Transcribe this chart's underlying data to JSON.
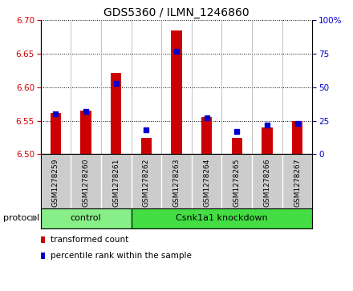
{
  "title": "GDS5360 / ILMN_1246860",
  "samples": [
    "GSM1278259",
    "GSM1278260",
    "GSM1278261",
    "GSM1278262",
    "GSM1278263",
    "GSM1278264",
    "GSM1278265",
    "GSM1278266",
    "GSM1278267"
  ],
  "transformed_count": [
    6.562,
    6.565,
    6.622,
    6.524,
    6.685,
    6.555,
    6.524,
    6.54,
    6.55
  ],
  "percentile_rank": [
    30,
    32,
    53,
    18,
    77,
    27,
    17,
    22,
    23
  ],
  "ylim_left": [
    6.5,
    6.7
  ],
  "ylim_right": [
    0,
    100
  ],
  "yticks_left": [
    6.5,
    6.55,
    6.6,
    6.65,
    6.7
  ],
  "yticks_right": [
    0,
    25,
    50,
    75,
    100
  ],
  "bar_color": "#cc0000",
  "marker_color": "#0000cc",
  "protocol_groups": [
    {
      "label": "control",
      "start": 0,
      "end": 3,
      "color": "#88ee88"
    },
    {
      "label": "Csnk1a1 knockdown",
      "start": 3,
      "end": 9,
      "color": "#44dd44"
    }
  ],
  "protocol_label": "protocol",
  "legend_items": [
    {
      "label": "transformed count",
      "color": "#cc0000"
    },
    {
      "label": "percentile rank within the sample",
      "color": "#0000cc"
    }
  ],
  "bar_width": 0.35,
  "title_fontsize": 10,
  "tick_fontsize": 7.5,
  "label_fontsize": 8,
  "plot_bg": "#ffffff",
  "tick_area_bg": "#cccccc",
  "protocol_border_color": "#000000"
}
